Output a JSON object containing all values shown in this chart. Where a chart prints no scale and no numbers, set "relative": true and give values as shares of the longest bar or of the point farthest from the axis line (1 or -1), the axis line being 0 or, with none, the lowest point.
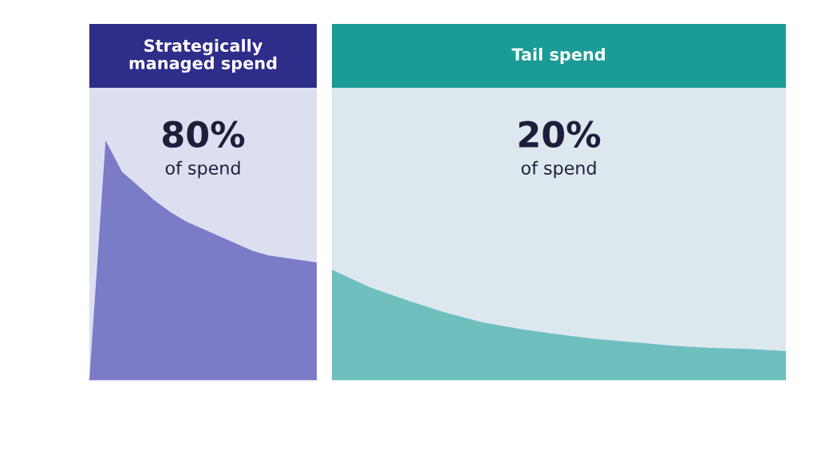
{
  "chart_data": [
    {
      "type": "area",
      "title": "Strategically\nmanaged spend",
      "relative": true,
      "grid": false,
      "legend": false,
      "categories": [
        null,
        null,
        null,
        null,
        null,
        null,
        null,
        null,
        null,
        null,
        null,
        null,
        null,
        null,
        null
      ],
      "series": [
        {
          "color": "#7b7bc8",
          "values": [
            0,
            1,
            0.87,
            0.81,
            0.75,
            0.7,
            0.66,
            0.63,
            0.6,
            0.57,
            0.54,
            0.52,
            0.51,
            0.5,
            0.49
          ]
        }
      ],
      "annotations": [
        "80%",
        "of spend"
      ]
    },
    {
      "type": "area",
      "title": "Tail spend",
      "relative": true,
      "grid": false,
      "legend": false,
      "categories": [
        null,
        null,
        null,
        null,
        null,
        null,
        null,
        null,
        null,
        null,
        null,
        null,
        null
      ],
      "series": [
        {
          "color": "#6fbfbf",
          "values": [
            1,
            0.84,
            0.72,
            0.61,
            0.52,
            0.46,
            0.41,
            0.37,
            0.34,
            0.31,
            0.29,
            0.28,
            0.26
          ]
        }
      ],
      "annotations": [
        "20%",
        "of spend"
      ]
    }
  ]
}
